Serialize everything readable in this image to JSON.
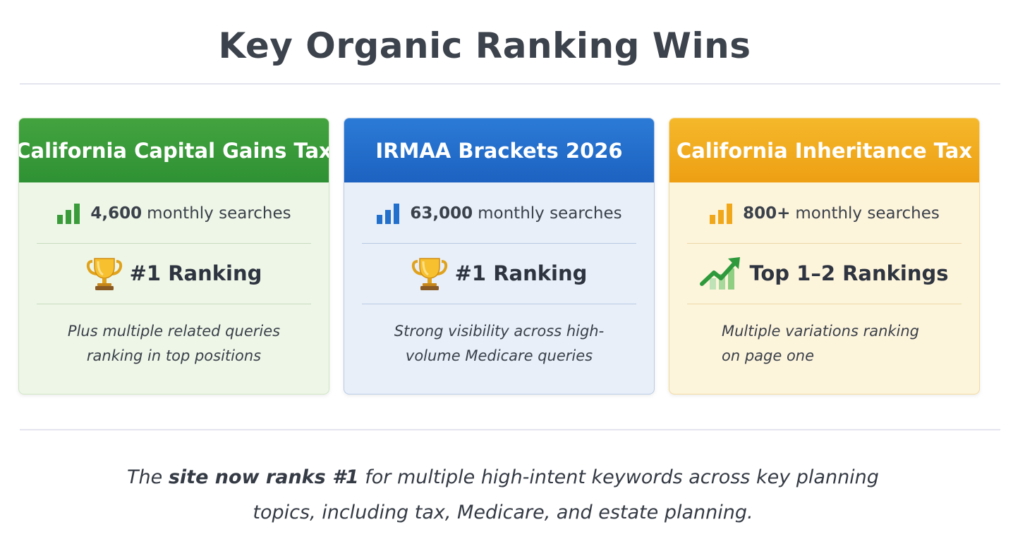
{
  "title": "Key Organic Ranking Wins",
  "cards": [
    {
      "heading": "California Capital Gains Tax",
      "searches_value": "4,600",
      "searches_label": "monthly searches",
      "rank_label": "#1 Ranking",
      "rank_icon": "trophy-icon",
      "note_lines": [
        "Plus multiple related queries",
        "ranking in top positions"
      ],
      "accent": "#3a9b3a"
    },
    {
      "heading": "IRMAA Brackets 2026",
      "searches_value": "63,000",
      "searches_label": "monthly searches",
      "rank_label": "#1 Ranking",
      "rank_icon": "trophy-icon",
      "note_lines": [
        "Strong visibility across high-",
        "volume Medicare queries"
      ],
      "accent": "#236fcc"
    },
    {
      "heading": "California Inheritance Tax",
      "searches_value": "800+",
      "searches_label": "monthly searches",
      "rank_label": "Top 1–2 Rankings",
      "rank_icon": "trending-up-icon",
      "note_lines": [
        "Multiple variations ranking",
        "on page one"
      ],
      "accent": "#f0a81a"
    }
  ],
  "summary": {
    "line1_pre": "The ",
    "line1_bold": "site now ranks #1",
    "line1_post": " for multiple high-intent keywords across key planning",
    "line2": "topics, including tax, Medicare, and estate planning."
  }
}
